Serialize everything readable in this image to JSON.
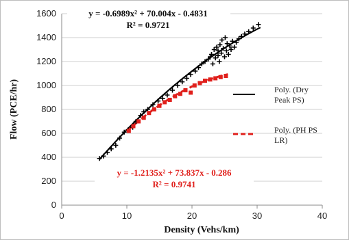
{
  "chart_data": {
    "type": "scatter",
    "xlabel": "Density (Vehs/km)",
    "ylabel": "Flow (PCE/hr)",
    "xlim": [
      0,
      40
    ],
    "ylim": [
      0,
      1600
    ],
    "x_ticks": [
      "0",
      "10",
      "20",
      "30",
      "40"
    ],
    "y_ticks": [
      "0",
      "200",
      "400",
      "600",
      "800",
      "1000",
      "1200",
      "1400",
      "1600"
    ],
    "grid": "horizontal",
    "legend_position": "right",
    "series": [
      {
        "name": "",
        "marker": "plus",
        "color": "#000000",
        "points": [
          [
            5.8,
            390
          ],
          [
            6.4,
            410
          ],
          [
            7.0,
            440
          ],
          [
            7.6,
            470
          ],
          [
            8.3,
            500
          ],
          [
            8.9,
            560
          ],
          [
            9.6,
            610
          ],
          [
            10.2,
            630
          ],
          [
            10.9,
            650
          ],
          [
            11.4,
            700
          ],
          [
            12.1,
            750
          ],
          [
            12.6,
            780
          ],
          [
            13.2,
            800
          ],
          [
            14.0,
            840
          ],
          [
            14.8,
            870
          ],
          [
            15.5,
            890
          ],
          [
            16.2,
            920
          ],
          [
            17.0,
            960
          ],
          [
            17.8,
            1000
          ],
          [
            18.5,
            1030
          ],
          [
            19.2,
            1060
          ],
          [
            19.8,
            1090
          ],
          [
            20.5,
            1120
          ],
          [
            21.0,
            1150
          ],
          [
            21.5,
            1180
          ],
          [
            22.0,
            1200
          ],
          [
            22.5,
            1220
          ],
          [
            22.8,
            1240
          ],
          [
            23.0,
            1260
          ],
          [
            23.2,
            1180
          ],
          [
            23.4,
            1300
          ],
          [
            23.6,
            1230
          ],
          [
            23.8,
            1320
          ],
          [
            24.0,
            1250
          ],
          [
            24.0,
            1290
          ],
          [
            24.2,
            1200
          ],
          [
            24.3,
            1340
          ],
          [
            24.5,
            1270
          ],
          [
            24.6,
            1380
          ],
          [
            24.8,
            1310
          ],
          [
            25.0,
            1240
          ],
          [
            25.1,
            1400
          ],
          [
            25.3,
            1290
          ],
          [
            25.4,
            1350
          ],
          [
            25.6,
            1260
          ],
          [
            25.8,
            1330
          ],
          [
            26.0,
            1300
          ],
          [
            26.2,
            1370
          ],
          [
            26.5,
            1320
          ],
          [
            26.8,
            1360
          ],
          [
            27.2,
            1390
          ],
          [
            27.6,
            1410
          ],
          [
            28.1,
            1430
          ],
          [
            28.7,
            1450
          ],
          [
            29.4,
            1480
          ],
          [
            30.2,
            1510
          ]
        ]
      },
      {
        "name": "",
        "marker": "square",
        "color": "#e0201c",
        "points": [
          [
            10.3,
            620
          ],
          [
            11.0,
            660
          ],
          [
            11.8,
            700
          ],
          [
            12.6,
            730
          ],
          [
            13.4,
            770
          ],
          [
            14.2,
            800
          ],
          [
            15.0,
            830
          ],
          [
            15.8,
            860
          ],
          [
            16.6,
            880
          ],
          [
            17.4,
            910
          ],
          [
            18.2,
            930
          ],
          [
            19.0,
            960
          ],
          [
            19.8,
            940
          ],
          [
            20.4,
            1000
          ],
          [
            21.2,
            1020
          ],
          [
            22.0,
            1040
          ],
          [
            22.8,
            1050
          ],
          [
            23.6,
            1060
          ],
          [
            24.4,
            1070
          ],
          [
            25.2,
            1080
          ]
        ]
      }
    ],
    "trendlines": [
      {
        "name": "Poly. (Dry Peak PS)",
        "legend_lines": [
          "Poly. (Dry",
          "Peak PS)"
        ],
        "style": "solid",
        "color": "#000000",
        "equation": "y = -0.6989x² + 70.004x - 0.4831",
        "r2": "R² = 0.9721",
        "coef": [
          -0.6989,
          70.004,
          -0.4831
        ],
        "x_range": [
          5.8,
          30.5
        ]
      },
      {
        "name": "Poly. (PH PS LR)",
        "legend_lines": [
          "Poly. (PH PS",
          "LR)"
        ],
        "style": "dashed",
        "color": "#e0201c",
        "equation": "y = -1.2135x² + 73.837x - 0.286",
        "r2": "R² = 0.9741",
        "coef": [
          -1.2135,
          73.837,
          -0.286
        ],
        "x_range": [
          10.0,
          25.5
        ]
      }
    ]
  }
}
